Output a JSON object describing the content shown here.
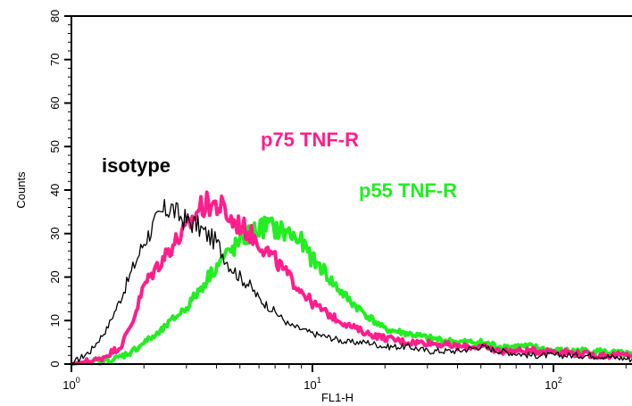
{
  "chart_data": {
    "type": "line",
    "title": "",
    "xlabel": "FL1-H",
    "ylabel": "Counts",
    "x_scale": "log",
    "xlim": [
      1,
      220
    ],
    "ylim": [
      0,
      80
    ],
    "x_ticks": [
      {
        "value": 1,
        "base": "10",
        "exp": "0"
      },
      {
        "value": 10,
        "base": "10",
        "exp": "1"
      },
      {
        "value": 100,
        "base": "10",
        "exp": "2"
      }
    ],
    "y_ticks": [
      0,
      10,
      20,
      30,
      40,
      50,
      60,
      70,
      80
    ],
    "grid": false,
    "legend": "none (series labeled directly on plot)",
    "series": [
      {
        "name": "isotype",
        "color": "#000000",
        "x": [
          1.0,
          1.2,
          1.4,
          1.6,
          1.8,
          2.0,
          2.2,
          2.4,
          2.6,
          2.8,
          3.0,
          3.3,
          3.6,
          4.0,
          4.5,
          5.0,
          5.5,
          6.0,
          7.0,
          8.0,
          9.0,
          10,
          12,
          14,
          17,
          20,
          25,
          30,
          40,
          50,
          60,
          80,
          100,
          150,
          220
        ],
        "y": [
          0,
          3,
          8,
          15,
          22,
          28,
          32,
          35,
          36,
          34,
          33,
          32,
          30,
          28,
          23,
          20,
          18,
          15,
          12,
          9,
          8,
          7,
          6,
          5,
          5,
          4,
          4,
          3,
          3,
          4,
          3,
          2,
          2,
          2,
          1
        ]
      },
      {
        "name": "p75 TNF-R",
        "color": "#ff1e8c",
        "x": [
          1.0,
          1.3,
          1.6,
          1.8,
          2.0,
          2.3,
          2.6,
          3.0,
          3.4,
          3.8,
          4.2,
          4.6,
          5.0,
          5.5,
          6.0,
          7.0,
          8.0,
          9.0,
          10,
          12,
          14,
          17,
          20,
          25,
          30,
          40,
          50,
          60,
          80,
          100,
          150,
          220
        ],
        "y": [
          0,
          1,
          4,
          10,
          18,
          23,
          27,
          31,
          36,
          37,
          36,
          33,
          32,
          30,
          28,
          24,
          20,
          17,
          14,
          11,
          9,
          7,
          6,
          5,
          5,
          4,
          4,
          3,
          3,
          3,
          2,
          2
        ]
      },
      {
        "name": "p55 TNF-R",
        "color": "#22ee22",
        "x": [
          1.0,
          1.5,
          1.8,
          2.0,
          2.3,
          2.6,
          3.0,
          3.4,
          3.8,
          4.2,
          4.6,
          5.0,
          5.5,
          6.0,
          6.5,
          7.0,
          8.0,
          9.0,
          10,
          11,
          12,
          14,
          17,
          20,
          25,
          30,
          40,
          50,
          60,
          80,
          100,
          150,
          220
        ],
        "y": [
          0,
          1,
          3,
          5,
          7,
          10,
          13,
          17,
          21,
          24,
          26,
          28,
          30,
          31,
          32,
          31,
          30,
          28,
          24,
          22,
          19,
          15,
          11,
          8,
          7,
          6,
          5,
          5,
          4,
          4,
          3,
          3,
          2
        ]
      }
    ]
  },
  "annotations": [
    {
      "text": "isotype",
      "color": "#000000"
    },
    {
      "text": "p75 TNF-R",
      "color": "#ff1e8c"
    },
    {
      "text": "p55 TNF-R",
      "color": "#22ee22"
    }
  ]
}
